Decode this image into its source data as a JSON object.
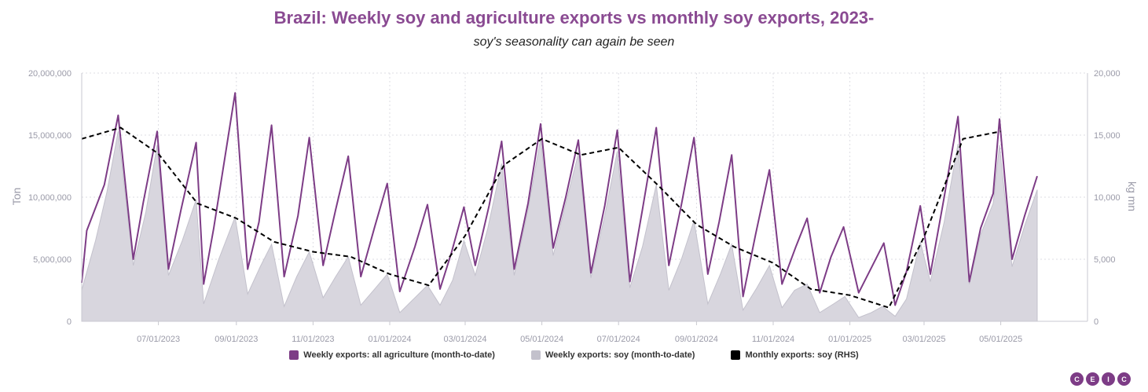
{
  "colors": {
    "agri": "#7d3c86",
    "soy_fill": "#d8d6de",
    "soy_line": "#c3c1cc",
    "monthly": "#000000",
    "title": "#8a4a92",
    "logo": "#7d3c86"
  },
  "chart_data": {
    "type": "line",
    "title": "Brazil: Weekly soy and agriculture exports vs monthly soy exports, 2023-",
    "subtitle": "soy's seasonality can again be seen",
    "ylabel_left": "Ton",
    "ylabel_right": "kg mn",
    "ylim_left": [
      0,
      20000000
    ],
    "ylim_right": [
      0,
      20000
    ],
    "xlim": [
      "2023-05-01",
      "2025-07-09"
    ],
    "grid": true,
    "legend_position": "bottom",
    "left_ticks": [
      {
        "value": 0,
        "label": "0"
      },
      {
        "value": 5000000,
        "label": "5,000,000"
      },
      {
        "value": 10000000,
        "label": "10,000,000"
      },
      {
        "value": 15000000,
        "label": "15,000,000"
      },
      {
        "value": 20000000,
        "label": "20,000,000"
      }
    ],
    "right_ticks": [
      {
        "value": 0,
        "label": "0"
      },
      {
        "value": 5000,
        "label": "5,000"
      },
      {
        "value": 10000,
        "label": "10,000"
      },
      {
        "value": 15000,
        "label": "15,000"
      },
      {
        "value": 20000,
        "label": "20,000"
      }
    ],
    "x_ticks": [
      {
        "date": "2023-07-01",
        "label": "07/01/2023"
      },
      {
        "date": "2023-09-01",
        "label": "09/01/2023"
      },
      {
        "date": "2023-11-01",
        "label": "11/01/2023"
      },
      {
        "date": "2024-01-01",
        "label": "01/01/2024"
      },
      {
        "date": "2024-03-01",
        "label": "03/01/2024"
      },
      {
        "date": "2024-05-01",
        "label": "05/01/2024"
      },
      {
        "date": "2024-07-01",
        "label": "07/01/2024"
      },
      {
        "date": "2024-09-01",
        "label": "09/01/2024"
      },
      {
        "date": "2024-11-01",
        "label": "11/01/2024"
      },
      {
        "date": "2025-01-01",
        "label": "01/01/2025"
      },
      {
        "date": "2025-03-01",
        "label": "03/01/2025"
      },
      {
        "date": "2025-05-01",
        "label": "05/01/2025"
      }
    ],
    "series": [
      {
        "name": "Weekly exports: all agriculture (month-to-date)",
        "axis": "left",
        "style": "line",
        "points": [
          [
            "2023-05-01",
            3100000
          ],
          [
            "2023-05-05",
            7300000
          ],
          [
            "2023-05-19",
            11000000
          ],
          [
            "2023-05-30",
            16600000
          ],
          [
            "2023-06-11",
            5000000
          ],
          [
            "2023-06-19",
            9600000
          ],
          [
            "2023-06-30",
            15300000
          ],
          [
            "2023-07-09",
            4200000
          ],
          [
            "2023-07-19",
            9000000
          ],
          [
            "2023-07-31",
            14400000
          ],
          [
            "2023-08-06",
            3000000
          ],
          [
            "2023-08-14",
            7500000
          ],
          [
            "2023-08-31",
            18400000
          ],
          [
            "2023-09-10",
            4200000
          ],
          [
            "2023-09-19",
            8000000
          ],
          [
            "2023-09-29",
            15800000
          ],
          [
            "2023-10-09",
            3600000
          ],
          [
            "2023-10-20",
            8500000
          ],
          [
            "2023-10-29",
            14800000
          ],
          [
            "2023-11-09",
            4500000
          ],
          [
            "2023-11-19",
            9000000
          ],
          [
            "2023-11-29",
            13300000
          ],
          [
            "2023-12-09",
            3600000
          ],
          [
            "2023-12-20",
            7600000
          ],
          [
            "2023-12-30",
            11100000
          ],
          [
            "2024-01-09",
            2400000
          ],
          [
            "2024-01-21",
            6000000
          ],
          [
            "2024-01-31",
            9400000
          ],
          [
            "2024-02-10",
            2600000
          ],
          [
            "2024-02-19",
            5500000
          ],
          [
            "2024-02-29",
            9200000
          ],
          [
            "2024-03-09",
            4500000
          ],
          [
            "2024-03-20",
            9300000
          ],
          [
            "2024-03-30",
            14500000
          ],
          [
            "2024-04-09",
            4200000
          ],
          [
            "2024-04-20",
            9500000
          ],
          [
            "2024-04-30",
            15900000
          ],
          [
            "2024-05-10",
            5900000
          ],
          [
            "2024-05-20",
            10000000
          ],
          [
            "2024-05-30",
            14600000
          ],
          [
            "2024-06-09",
            3900000
          ],
          [
            "2024-06-20",
            9300000
          ],
          [
            "2024-06-30",
            15400000
          ],
          [
            "2024-07-10",
            3200000
          ],
          [
            "2024-07-20",
            9000000
          ],
          [
            "2024-07-31",
            15600000
          ],
          [
            "2024-08-10",
            4500000
          ],
          [
            "2024-08-20",
            9400000
          ],
          [
            "2024-08-30",
            14800000
          ],
          [
            "2024-09-10",
            3800000
          ],
          [
            "2024-09-19",
            8000000
          ],
          [
            "2024-09-29",
            13400000
          ],
          [
            "2024-10-08",
            2000000
          ],
          [
            "2024-10-18",
            7000000
          ],
          [
            "2024-10-29",
            12200000
          ],
          [
            "2024-11-08",
            3000000
          ],
          [
            "2024-11-19",
            6000000
          ],
          [
            "2024-11-28",
            8300000
          ],
          [
            "2024-12-08",
            2300000
          ],
          [
            "2024-12-17",
            5200000
          ],
          [
            "2024-12-27",
            7600000
          ],
          [
            "2025-01-08",
            2300000
          ],
          [
            "2025-01-19",
            4500000
          ],
          [
            "2025-01-28",
            6300000
          ],
          [
            "2025-02-06",
            1300000
          ],
          [
            "2025-02-15",
            4000000
          ],
          [
            "2025-02-26",
            9300000
          ],
          [
            "2025-03-06",
            3800000
          ],
          [
            "2025-03-17",
            10000000
          ],
          [
            "2025-03-28",
            16500000
          ],
          [
            "2025-04-06",
            3200000
          ],
          [
            "2025-04-15",
            7500000
          ],
          [
            "2025-04-25",
            10300000
          ],
          [
            "2025-04-30",
            16300000
          ],
          [
            "2025-05-10",
            5000000
          ],
          [
            "2025-05-20",
            8500000
          ],
          [
            "2025-05-30",
            11700000
          ]
        ]
      },
      {
        "name": "Weekly exports: soy (month-to-date)",
        "axis": "left",
        "style": "area",
        "points": [
          [
            "2023-05-01",
            2500000
          ],
          [
            "2023-05-12",
            6500000
          ],
          [
            "2023-05-21",
            10400000
          ],
          [
            "2023-05-30",
            15300000
          ],
          [
            "2023-06-11",
            4500000
          ],
          [
            "2023-06-21",
            8800000
          ],
          [
            "2023-06-30",
            14200000
          ],
          [
            "2023-07-09",
            3700000
          ],
          [
            "2023-07-20",
            6500000
          ],
          [
            "2023-07-31",
            9800000
          ],
          [
            "2023-08-06",
            1400000
          ],
          [
            "2023-08-18",
            5000000
          ],
          [
            "2023-08-31",
            8400000
          ],
          [
            "2023-09-10",
            2200000
          ],
          [
            "2023-09-20",
            4400000
          ],
          [
            "2023-09-29",
            6200000
          ],
          [
            "2023-10-09",
            1200000
          ],
          [
            "2023-10-19",
            3600000
          ],
          [
            "2023-10-29",
            5600000
          ],
          [
            "2023-11-09",
            1900000
          ],
          [
            "2023-11-19",
            3600000
          ],
          [
            "2023-11-29",
            5200000
          ],
          [
            "2023-12-09",
            1300000
          ],
          [
            "2023-12-20",
            2600000
          ],
          [
            "2023-12-30",
            3800000
          ],
          [
            "2024-01-09",
            700000
          ],
          [
            "2024-01-20",
            1800000
          ],
          [
            "2024-01-31",
            2900000
          ],
          [
            "2024-02-10",
            1300000
          ],
          [
            "2024-02-20",
            3300000
          ],
          [
            "2024-02-29",
            6500000
          ],
          [
            "2024-03-09",
            3700000
          ],
          [
            "2024-03-19",
            7500000
          ],
          [
            "2024-03-30",
            12700000
          ],
          [
            "2024-04-09",
            3700000
          ],
          [
            "2024-04-20",
            9000000
          ],
          [
            "2024-04-30",
            14700000
          ],
          [
            "2024-05-10",
            5300000
          ],
          [
            "2024-05-20",
            9500000
          ],
          [
            "2024-05-30",
            13500000
          ],
          [
            "2024-06-09",
            3500000
          ],
          [
            "2024-06-20",
            8500000
          ],
          [
            "2024-06-30",
            13700000
          ],
          [
            "2024-07-10",
            2700000
          ],
          [
            "2024-07-20",
            6000000
          ],
          [
            "2024-07-31",
            11000000
          ],
          [
            "2024-08-10",
            2500000
          ],
          [
            "2024-08-20",
            5000000
          ],
          [
            "2024-08-30",
            8100000
          ],
          [
            "2024-09-10",
            1400000
          ],
          [
            "2024-09-20",
            3800000
          ],
          [
            "2024-09-29",
            6200000
          ],
          [
            "2024-10-08",
            900000
          ],
          [
            "2024-10-19",
            2700000
          ],
          [
            "2024-10-29",
            4500000
          ],
          [
            "2024-11-08",
            1100000
          ],
          [
            "2024-11-18",
            2500000
          ],
          [
            "2024-11-28",
            3000000
          ],
          [
            "2024-12-08",
            700000
          ],
          [
            "2024-12-19",
            1400000
          ],
          [
            "2024-12-28",
            2000000
          ],
          [
            "2025-01-08",
            300000
          ],
          [
            "2025-01-18",
            700000
          ],
          [
            "2025-01-27",
            1200000
          ],
          [
            "2025-02-06",
            400000
          ],
          [
            "2025-02-15",
            1800000
          ],
          [
            "2025-02-26",
            6400000
          ],
          [
            "2025-03-06",
            3200000
          ],
          [
            "2025-03-17",
            8000000
          ],
          [
            "2025-03-28",
            14300000
          ],
          [
            "2025-04-06",
            3000000
          ],
          [
            "2025-04-15",
            7000000
          ],
          [
            "2025-04-25",
            9500000
          ],
          [
            "2025-04-30",
            14200000
          ],
          [
            "2025-05-10",
            4400000
          ],
          [
            "2025-05-20",
            7700000
          ],
          [
            "2025-05-30",
            10600000
          ]
        ]
      },
      {
        "name": "Monthly exports: soy (RHS)",
        "axis": "right",
        "style": "dashed",
        "points": [
          [
            "2023-05-01",
            14700
          ],
          [
            "2023-06-01",
            15600
          ],
          [
            "2023-07-01",
            13500
          ],
          [
            "2023-08-01",
            9500
          ],
          [
            "2023-09-01",
            8300
          ],
          [
            "2023-10-01",
            6400
          ],
          [
            "2023-11-01",
            5600
          ],
          [
            "2023-12-01",
            5200
          ],
          [
            "2024-01-01",
            3800
          ],
          [
            "2024-02-01",
            2900
          ],
          [
            "2024-03-01",
            6900
          ],
          [
            "2024-04-01",
            12600
          ],
          [
            "2024-05-01",
            14700
          ],
          [
            "2024-06-01",
            13400
          ],
          [
            "2024-07-01",
            14000
          ],
          [
            "2024-08-01",
            11000
          ],
          [
            "2024-09-01",
            7800
          ],
          [
            "2024-10-01",
            6000
          ],
          [
            "2024-11-01",
            4700
          ],
          [
            "2024-12-01",
            2600
          ],
          [
            "2025-01-01",
            2100
          ],
          [
            "2025-02-01",
            1100
          ],
          [
            "2025-03-01",
            6800
          ],
          [
            "2025-04-01",
            14700
          ],
          [
            "2025-05-01",
            15300
          ]
        ]
      }
    ]
  },
  "logo_letters": [
    "C",
    "E",
    "I",
    "C"
  ]
}
